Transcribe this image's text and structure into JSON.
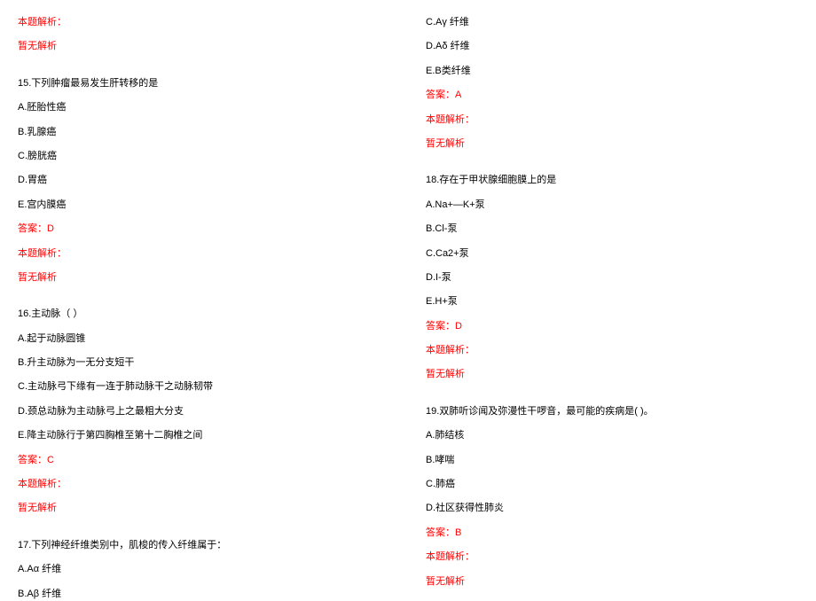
{
  "colors": {
    "text": "#000000",
    "highlight": "#ff0000",
    "background": "#ffffff"
  },
  "typography": {
    "font_family": "SimSun",
    "font_size_pt": 8,
    "line_spacing": 12
  },
  "left": {
    "header_label": "本题解析：",
    "header_none": "暂无解析",
    "q15": {
      "stem": "15.下列肿瘤最易发生肝转移的是",
      "a": "A.胚胎性癌",
      "b": "B.乳腺癌",
      "c": "C.膀胱癌",
      "d": "D.胃癌",
      "e": "E.宫内膜癌",
      "answer": "答案：D",
      "parse_label": "本题解析：",
      "parse_none": "暂无解析"
    },
    "q16": {
      "stem": "16.主动脉（ ）",
      "a": "A.起于动脉圆锥",
      "b": "B.升主动脉为一无分支短干",
      "c": "C.主动脉弓下缘有一连于肺动脉干之动脉韧带",
      "d": "D.颈总动脉为主动脉弓上之最粗大分支",
      "e": "E.降主动脉行于第四胸椎至第十二胸椎之间",
      "answer": "答案：C",
      "parse_label": "本题解析：",
      "parse_none": "暂无解析"
    },
    "q17": {
      "stem": "17.下列神经纤维类别中，肌梭的传入纤维属于：",
      "a": "A.Aα 纤维",
      "b": "B.Aβ 纤维"
    }
  },
  "right": {
    "q17cont": {
      "c": "C.Aγ 纤维",
      "d": "D.Aδ 纤维",
      "e": "E.B类纤维",
      "answer": "答案：A",
      "parse_label": "本题解析：",
      "parse_none": "暂无解析"
    },
    "q18": {
      "stem": "18.存在于甲状腺细胞膜上的是",
      "a": "A.Na+—K+泵",
      "b": "B.Cl-泵",
      "c": "C.Ca2+泵",
      "d": "D.I-泵",
      "e": "E.H+泵",
      "answer": "答案：D",
      "parse_label": "本题解析：",
      "parse_none": "暂无解析"
    },
    "q19": {
      "stem": "19.双肺听诊闻及弥漫性干啰音，最可能的疾病是( )。",
      "a": "A.肺结核",
      "b": "B.哮喘",
      "c": "C.肺癌",
      "d": "D.社区获得性肺炎",
      "answer": "答案：B",
      "parse_label": "本题解析：",
      "parse_none": "暂无解析"
    }
  }
}
